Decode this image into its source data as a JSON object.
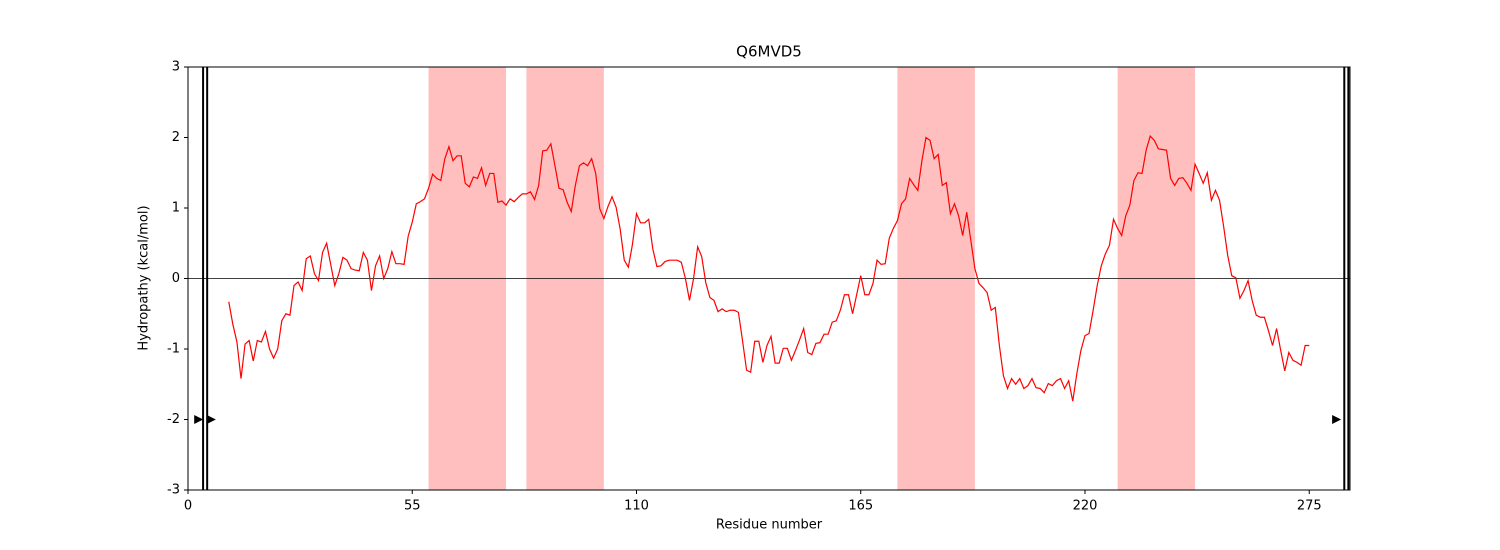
{
  "chart_data": {
    "type": "line",
    "title": "Q6MVD5",
    "xlabel": "Residue number",
    "ylabel": "Hydropathy (kcal/mol)",
    "color": "#ff0000",
    "region_color": "#ffbfbf",
    "xlim": [
      0,
      285
    ],
    "ylim": [
      -3,
      3
    ],
    "xticks": [
      0,
      55,
      110,
      165,
      220,
      275
    ],
    "yticks": [
      -3,
      -2,
      -1,
      0,
      1,
      2,
      3
    ],
    "hline": 0,
    "regions": [
      [
        59,
        78
      ],
      [
        83,
        102
      ],
      [
        174,
        193
      ],
      [
        228,
        247
      ]
    ],
    "vlines": [
      3.7,
      4.7,
      283.6,
      284.6
    ],
    "markers": {
      "x": [
        2.5,
        5.6,
        281.6
      ],
      "y": [
        -2,
        -2,
        -2
      ]
    },
    "x": [
      10,
      11,
      12,
      13,
      14,
      15,
      16,
      17,
      18,
      19,
      20,
      21,
      22,
      23,
      24,
      25,
      26,
      27,
      28,
      29,
      30,
      31,
      32,
      33,
      34,
      35,
      36,
      37,
      38,
      39,
      40,
      41,
      42,
      43,
      44,
      45,
      46,
      47,
      48,
      49,
      50,
      51,
      52,
      53,
      54,
      55,
      56,
      57,
      58,
      59,
      60,
      61,
      62,
      63,
      64,
      65,
      66,
      67,
      68,
      69,
      70,
      71,
      72,
      73,
      74,
      75,
      76,
      77,
      78,
      79,
      80,
      81,
      82,
      83,
      84,
      85,
      86,
      87,
      88,
      89,
      90,
      91,
      92,
      93,
      94,
      95,
      96,
      97,
      98,
      99,
      100,
      101,
      102,
      103,
      104,
      105,
      106,
      107,
      108,
      109,
      110,
      111,
      112,
      113,
      114,
      115,
      116,
      117,
      118,
      119,
      120,
      121,
      122,
      123,
      124,
      125,
      126,
      127,
      128,
      129,
      130,
      131,
      132,
      133,
      134,
      135,
      136,
      137,
      138,
      139,
      140,
      141,
      142,
      143,
      144,
      145,
      146,
      147,
      148,
      149,
      150,
      151,
      152,
      153,
      154,
      155,
      156,
      157,
      158,
      159,
      160,
      161,
      162,
      163,
      164,
      165,
      166,
      167,
      168,
      169,
      170,
      171,
      172,
      173,
      174,
      175,
      176,
      177,
      178,
      179,
      180,
      181,
      182,
      183,
      184,
      185,
      186,
      187,
      188,
      189,
      190,
      191,
      192,
      193,
      194,
      195,
      196,
      197,
      198,
      199,
      200,
      201,
      202,
      203,
      204,
      205,
      206,
      207,
      208,
      209,
      210,
      211,
      212,
      213,
      214,
      215,
      216,
      217,
      218,
      219,
      220,
      221,
      222,
      223,
      224,
      225,
      226,
      227,
      228,
      229,
      230,
      231,
      232,
      233,
      234,
      235,
      236,
      237,
      238,
      239,
      240,
      241,
      242,
      243,
      244,
      245,
      246,
      247,
      248,
      249,
      250,
      251,
      252,
      253,
      254,
      255,
      256,
      257,
      258,
      259,
      260,
      261,
      262,
      263,
      264,
      265,
      266,
      267,
      268,
      269,
      270,
      271,
      272,
      273,
      274,
      275
    ],
    "values": [
      -0.33,
      -0.65,
      -0.9,
      -1.42,
      -0.93,
      -0.88,
      -1.17,
      -0.88,
      -0.9,
      -0.75,
      -1.0,
      -1.13,
      -1.0,
      -0.6,
      -0.5,
      -0.52,
      -0.1,
      -0.05,
      -0.17,
      0.28,
      0.32,
      0.07,
      -0.03,
      0.37,
      0.5,
      0.2,
      -0.1,
      0.07,
      0.3,
      0.26,
      0.14,
      0.12,
      0.11,
      0.37,
      0.26,
      -0.17,
      0.18,
      0.32,
      0,
      0.14,
      0.38,
      0.21,
      0.21,
      0.2,
      0.6,
      0.8,
      1.06,
      1.09,
      1.13,
      1.28,
      1.48,
      1.42,
      1.39,
      1.7,
      1.87,
      1.67,
      1.74,
      1.74,
      1.35,
      1.3,
      1.44,
      1.42,
      1.57,
      1.32,
      1.49,
      1.49,
      1.08,
      1.1,
      1.04,
      1.13,
      1.09,
      1.15,
      1.2,
      1.2,
      1.23,
      1.12,
      1.32,
      1.81,
      1.82,
      1.91,
      1.6,
      1.28,
      1.26,
      1.08,
      0.95,
      1.32,
      1.6,
      1.64,
      1.6,
      1.7,
      1.49,
      0.99,
      0.85,
      1.02,
      1.16,
      1.01,
      0.7,
      0.26,
      0.16,
      0.48,
      0.92,
      0.79,
      0.79,
      0.84,
      0.42,
      0.17,
      0.18,
      0.24,
      0.26,
      0.26,
      0.26,
      0.23,
      0,
      -0.31,
      0,
      0.45,
      0.31,
      -0.06,
      -0.27,
      -0.31,
      -0.47,
      -0.43,
      -0.47,
      -0.45,
      -0.45,
      -0.48,
      -0.88,
      -1.3,
      -1.33,
      -0.89,
      -0.89,
      -1.19,
      -0.95,
      -0.82,
      -1.2,
      -1.2,
      -0.99,
      -0.99,
      -1.16,
      -1.02,
      -0.87,
      -0.71,
      -1.05,
      -1.08,
      -0.92,
      -0.91,
      -0.79,
      -0.79,
      -0.62,
      -0.6,
      -0.45,
      -0.23,
      -0.23,
      -0.5,
      -0.23,
      0.04,
      -0.23,
      -0.23,
      -0.07,
      0.26,
      0.2,
      0.21,
      0.57,
      0.71,
      0.82,
      1.06,
      1.13,
      1.42,
      1.33,
      1.25,
      1.67,
      2.0,
      1.96,
      1.7,
      1.76,
      1.32,
      1.36,
      0.92,
      1.06,
      0.89,
      0.61,
      0.94,
      0.54,
      0.14,
      -0.07,
      -0.13,
      -0.2,
      -0.45,
      -0.41,
      -0.95,
      -1.38,
      -1.56,
      -1.42,
      -1.5,
      -1.42,
      -1.56,
      -1.52,
      -1.42,
      -1.55,
      -1.56,
      -1.62,
      -1.49,
      -1.52,
      -1.45,
      -1.42,
      -1.56,
      -1.45,
      -1.74,
      -1.35,
      -1.02,
      -0.81,
      -0.78,
      -0.45,
      -0.1,
      0.18,
      0.35,
      0.47,
      0.84,
      0.71,
      0.61,
      0.89,
      1.04,
      1.39,
      1.5,
      1.49,
      1.82,
      2.02,
      1.96,
      1.84,
      1.83,
      1.82,
      1.42,
      1.32,
      1.42,
      1.43,
      1.35,
      1.25,
      1.62,
      1.49,
      1.35,
      1.5,
      1.11,
      1.25,
      1.11,
      0.74,
      0.33,
      0.04,
      0.01,
      -0.28,
      -0.17,
      -0.03,
      -0.31,
      -0.52,
      -0.55,
      -0.55,
      -0.74,
      -0.95,
      -0.71,
      -1.02,
      -1.31,
      -1.05,
      -1.16,
      -1.19,
      -1.23,
      -0.95,
      -0.95
    ]
  }
}
